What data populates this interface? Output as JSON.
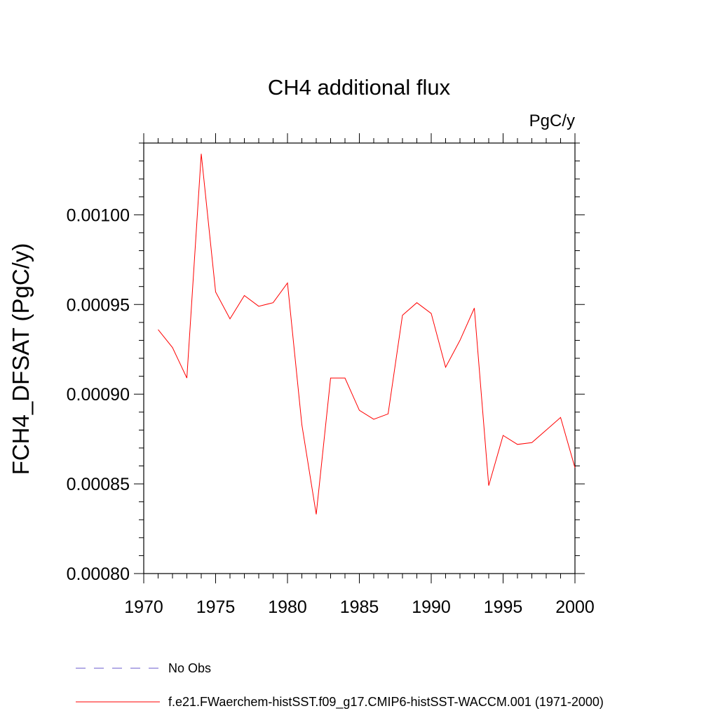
{
  "chart_data": {
    "type": "line",
    "title": "CH4 additional flux",
    "units_label": "PgC/y",
    "ylabel": "FCH4_DFSAT  (PgC/y)",
    "xlabel": "",
    "xlim": [
      1970,
      2000
    ],
    "ylim": [
      0.0008,
      0.00104
    ],
    "x_ticks": [
      1970,
      1975,
      1980,
      1985,
      1990,
      1995,
      2000
    ],
    "x_tick_labels": [
      "1970",
      "1975",
      "1980",
      "1985",
      "1990",
      "1995",
      "2000"
    ],
    "y_ticks": [
      0.0008,
      0.00085,
      0.0009,
      0.00095,
      0.001
    ],
    "y_tick_labels": [
      "0.00080",
      "0.00085",
      "0.00090",
      "0.00095",
      "0.00100"
    ],
    "grid": false,
    "legend_position": "bottom",
    "series": [
      {
        "name": "f.e21.FWaerchem-histSST.f09_g17.CMIP6-histSST-WACCM.001 (1971-2000)",
        "color": "#ff0000",
        "x": [
          1971,
          1972,
          1973,
          1974,
          1975,
          1976,
          1977,
          1978,
          1979,
          1980,
          1981,
          1982,
          1983,
          1984,
          1985,
          1986,
          1987,
          1988,
          1989,
          1990,
          1991,
          1992,
          1993,
          1994,
          1995,
          1996,
          1997,
          1998,
          1999,
          2000
        ],
        "values": [
          0.000936,
          0.000926,
          0.000909,
          0.001034,
          0.000957,
          0.000942,
          0.000955,
          0.000949,
          0.000951,
          0.000962,
          0.000883,
          0.000833,
          0.000909,
          0.000909,
          0.000891,
          0.000886,
          0.000889,
          0.000944,
          0.000951,
          0.000945,
          0.000915,
          0.00093,
          0.000948,
          0.000849,
          0.000877,
          0.000872,
          0.000873,
          0.00088,
          0.000887,
          0.000859
        ]
      }
    ],
    "legend": [
      {
        "label": "No Obs",
        "style": "dashed",
        "color": "#6a5acd"
      },
      {
        "label": "f.e21.FWaerchem-histSST.f09_g17.CMIP6-histSST-WACCM.001 (1971-2000)",
        "style": "solid",
        "color": "#ff0000"
      }
    ]
  }
}
